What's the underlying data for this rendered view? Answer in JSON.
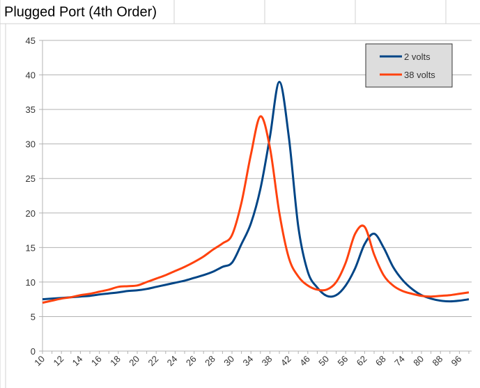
{
  "chart_data": {
    "type": "line",
    "title": "Plugged Port (4th Order)",
    "categories": [
      "10",
      null,
      "12",
      null,
      "14",
      null,
      "16",
      null,
      "18",
      null,
      "20",
      null,
      "22",
      null,
      "24",
      null,
      "26",
      null,
      "28",
      null,
      "30",
      null,
      "34",
      null,
      "38",
      null,
      "42",
      null,
      "46",
      null,
      "50",
      null,
      "56",
      null,
      "62",
      null,
      "68",
      null,
      "74",
      null,
      "80",
      null,
      "88",
      null,
      "96",
      null
    ],
    "series": [
      {
        "name": "2 volts",
        "color": "#004586",
        "values": [
          7.5,
          7.6,
          7.7,
          7.8,
          7.9,
          8.0,
          8.2,
          8.35,
          8.5,
          8.7,
          8.8,
          9.0,
          9.3,
          9.6,
          9.9,
          10.2,
          10.6,
          11.0,
          11.5,
          12.2,
          12.8,
          15.5,
          18.5,
          23.5,
          31,
          39,
          31,
          18,
          11.5,
          9.2,
          8.0,
          8.1,
          9.5,
          12.0,
          15.5,
          17.0,
          15,
          12.2,
          10.3,
          9.0,
          8.1,
          7.6,
          7.3,
          7.2,
          7.3,
          7.5
        ]
      },
      {
        "name": "38 volts",
        "color": "#ff420e",
        "values": [
          7.0,
          7.3,
          7.6,
          7.8,
          8.1,
          8.3,
          8.6,
          8.9,
          9.3,
          9.4,
          9.5,
          10.0,
          10.5,
          11.0,
          11.6,
          12.2,
          12.9,
          13.7,
          14.7,
          15.6,
          16.8,
          21.5,
          28.5,
          34,
          29.5,
          20,
          13.5,
          10.8,
          9.5,
          8.9,
          8.9,
          10.0,
          12.8,
          17.0,
          18.0,
          14.0,
          11.0,
          9.5,
          8.7,
          8.3,
          8.0,
          7.9,
          8.0,
          8.1,
          8.3,
          8.5
        ]
      }
    ],
    "ylim": [
      0,
      45
    ],
    "yticks": [
      0,
      5,
      10,
      15,
      20,
      25,
      30,
      35,
      40,
      45
    ],
    "grid": true,
    "legend": "top-right"
  }
}
